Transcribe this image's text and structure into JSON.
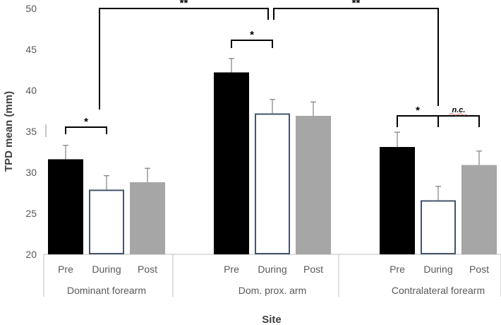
{
  "chart_data": {
    "type": "bar",
    "title": "",
    "xlabel": "Site",
    "ylabel": "TPD mean (mm)",
    "ylim": [
      20,
      50
    ],
    "yticks": [
      20,
      25,
      30,
      35,
      40,
      45,
      50
    ],
    "groups": [
      {
        "name": "Dominant forearm",
        "bars": [
          {
            "category": "Pre",
            "value": 31.6,
            "error": 1.7
          },
          {
            "category": "During",
            "value": 27.9,
            "error": 1.7
          },
          {
            "category": "Post",
            "value": 28.8,
            "error": 1.7
          }
        ]
      },
      {
        "name": "Dom. prox. arm",
        "bars": [
          {
            "category": "Pre",
            "value": 42.2,
            "error": 1.7
          },
          {
            "category": "During",
            "value": 37.2,
            "error": 1.7
          },
          {
            "category": "Post",
            "value": 36.9,
            "error": 1.7
          }
        ]
      },
      {
        "name": "Contralateral forearm",
        "bars": [
          {
            "category": "Pre",
            "value": 33.1,
            "error": 1.8
          },
          {
            "category": "During",
            "value": 26.6,
            "error": 1.7
          },
          {
            "category": "Post",
            "value": 30.9,
            "error": 1.7
          }
        ]
      }
    ],
    "series_styles": {
      "Pre": {
        "fill": "#000000",
        "stroke": "#000000"
      },
      "During": {
        "fill": "#ffffff",
        "stroke": "#44546a"
      },
      "Post": {
        "fill": "#a6a6a6",
        "stroke": "#a6a6a6"
      }
    },
    "annotations": [
      {
        "label": "*",
        "from": [
          0,
          0
        ],
        "to": [
          0,
          1
        ]
      },
      {
        "label": "*",
        "from": [
          1,
          0
        ],
        "to": [
          1,
          1
        ]
      },
      {
        "label": "*",
        "from": [
          2,
          0
        ],
        "to": [
          2,
          1
        ]
      },
      {
        "label": "n.c.",
        "from": [
          2,
          1
        ],
        "to": [
          2,
          2
        ]
      },
      {
        "label": "**",
        "from": "Dominant forearm",
        "to": "Dom. prox. arm"
      },
      {
        "label": "**",
        "from": "Dom. prox. arm",
        "to": "Contralateral forearm"
      }
    ],
    "colors": {
      "axis": "#bfbfbf",
      "text": "#595959",
      "nc_underline": "#e06666"
    }
  }
}
